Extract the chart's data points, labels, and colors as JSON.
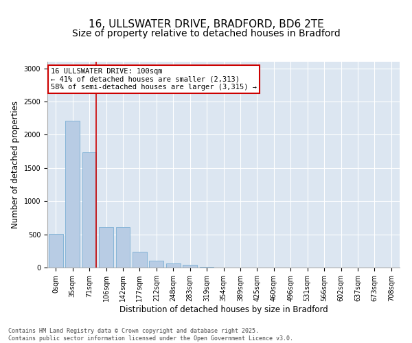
{
  "title1": "16, ULLSWATER DRIVE, BRADFORD, BD6 2TE",
  "title2": "Size of property relative to detached houses in Bradford",
  "xlabel": "Distribution of detached houses by size in Bradford",
  "ylabel": "Number of detached properties",
  "categories": [
    "0sqm",
    "35sqm",
    "71sqm",
    "106sqm",
    "142sqm",
    "177sqm",
    "212sqm",
    "248sqm",
    "283sqm",
    "319sqm",
    "354sqm",
    "389sqm",
    "425sqm",
    "460sqm",
    "496sqm",
    "531sqm",
    "566sqm",
    "602sqm",
    "637sqm",
    "673sqm",
    "708sqm"
  ],
  "bar_values": [
    510,
    2210,
    1740,
    610,
    610,
    240,
    105,
    65,
    40,
    15,
    5,
    0,
    0,
    0,
    0,
    0,
    0,
    0,
    0,
    0,
    0
  ],
  "bar_color": "#b8cce4",
  "bar_edge_color": "#7bafd4",
  "background_color": "#dce6f1",
  "grid_color": "#ffffff",
  "vline_color": "#cc0000",
  "annotation_text": "16 ULLSWATER DRIVE: 100sqm\n← 41% of detached houses are smaller (2,313)\n58% of semi-detached houses are larger (3,315) →",
  "annotation_box_facecolor": "#ffffff",
  "annotation_box_edgecolor": "#cc0000",
  "footer_text": "Contains HM Land Registry data © Crown copyright and database right 2025.\nContains public sector information licensed under the Open Government Licence v3.0.",
  "ylim": [
    0,
    3100
  ],
  "yticks": [
    0,
    500,
    1000,
    1500,
    2000,
    2500,
    3000
  ],
  "title_fontsize": 11,
  "axis_label_fontsize": 8.5,
  "tick_fontsize": 7,
  "annotation_fontsize": 7.5,
  "footer_fontsize": 6
}
